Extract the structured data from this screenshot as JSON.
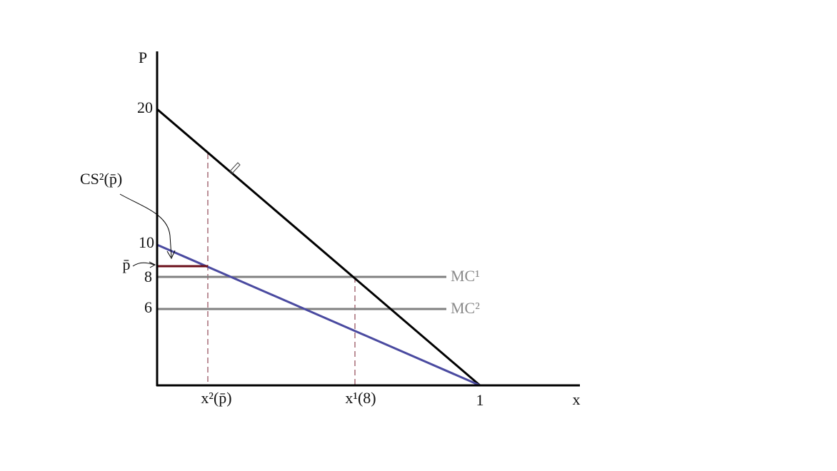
{
  "axes": {
    "y_label": "P",
    "x_label": "x"
  },
  "y_labels": [
    "20",
    "10",
    "p̄",
    "8",
    "6"
  ],
  "x_labels": [
    "x²(p̄)",
    "x¹(8)",
    "1"
  ],
  "curve_labels": [
    "MC¹",
    "MC²"
  ],
  "annotation": "CS²(p̄)"
}
